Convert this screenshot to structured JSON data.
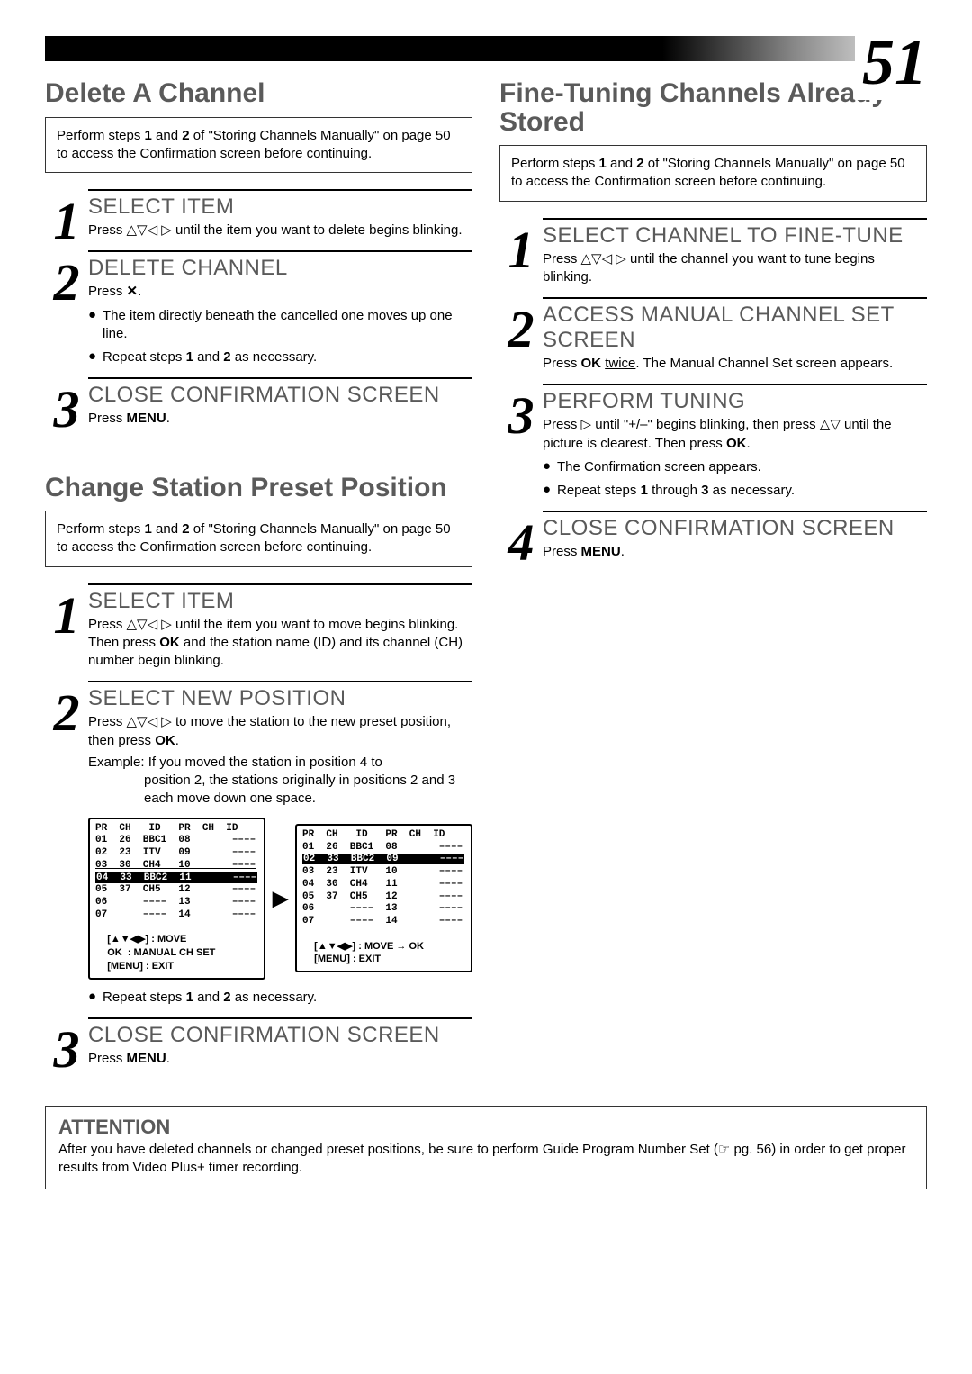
{
  "page_number": "51",
  "left": {
    "delete": {
      "title": "Delete A Channel",
      "intro": "Perform steps <b>1</b> and <b>2</b> of \"Storing Channels Manually\" on page 50 to access the Confirmation screen before continuing.",
      "steps": [
        {
          "num": "1",
          "heading": "SELECT ITEM",
          "body": "Press <span class='sym'>△▽◁ ▷</span> until the item you want to delete begins blinking."
        },
        {
          "num": "2",
          "heading": "DELETE CHANNEL",
          "body": "Press <b>✕</b>.",
          "bullets": [
            "The item directly beneath the cancelled one moves up one line.",
            "Repeat steps <b>1</b> and <b>2</b> as necessary."
          ]
        },
        {
          "num": "3",
          "heading": "CLOSE CONFIRMATION SCREEN",
          "body": "Press <b>MENU</b>."
        }
      ]
    },
    "change": {
      "title": "Change Station Preset Position",
      "intro": "Perform steps <b>1</b> and <b>2</b> of \"Storing Channels Manually\" on page 50 to access the Confirmation screen before continuing.",
      "steps": [
        {
          "num": "1",
          "heading": "SELECT ITEM",
          "body": "Press <span class='sym'>△▽◁ ▷</span> until the item you want to move begins blinking. Then press <b>OK</b> and the station name (ID) and its channel (CH) number begin blinking."
        },
        {
          "num": "2",
          "heading": "SELECT NEW POSITION",
          "body": "Press <span class='sym'>△▽◁ ▷</span> to move the station to the new preset position, then press <b>OK</b>.",
          "example_lead": "Example: If you moved the station in position 4 to",
          "example_rest": "position 2, the stations originally in positions 2 and 3 each move down one space.",
          "repeat_bullet": "Repeat steps <b>1</b> and <b>2</b> as necessary."
        },
        {
          "num": "3",
          "heading": "CLOSE CONFIRMATION SCREEN",
          "body": "Press <b>MENU</b>."
        }
      ]
    }
  },
  "right": {
    "finetune": {
      "title": "Fine-Tuning Channels Already Stored",
      "intro": "Perform steps <b>1</b> and <b>2</b> of \"Storing Channels Manually\" on page 50 to access the Confirmation screen before continuing.",
      "steps": [
        {
          "num": "1",
          "heading": "SELECT CHANNEL TO FINE-TUNE",
          "body": "Press <span class='sym'>△▽◁ ▷</span> until the channel you want to tune begins blinking."
        },
        {
          "num": "2",
          "heading": "ACCESS MANUAL CHANNEL SET SCREEN",
          "body": "Press <b>OK</b> <u>twice</u>. The Manual Channel Set screen appears."
        },
        {
          "num": "3",
          "heading": "PERFORM TUNING",
          "body": "Press <span class='sym'>▷</span> until \"+/–\" begins blinking, then press <span class='sym'>△▽</span> until the picture is clearest. Then press <b>OK</b>.",
          "bullets": [
            "The Confirmation screen appears.",
            "Repeat steps <b>1</b> through <b>3</b> as necessary."
          ]
        },
        {
          "num": "4",
          "heading": "CLOSE CONFIRMATION SCREEN",
          "body": "Press <b>MENU</b>."
        }
      ]
    }
  },
  "tv_before": {
    "header": "PR  CH   ID   PR  CH  ID",
    "rows": [
      "01  26  BBC1  08       ––––",
      "02  23  ITV   09       ––––",
      "03  30  CH4   10       ––––",
      "04  33  BBC2  11       ––––",
      "05  37  CH5   12       ––––",
      "06      ––––  13       ––––",
      "07      ––––  14       ––––"
    ],
    "footer1": "[▲▼◀▶] : MOVE",
    "footer2": "OK  : MANUAL CH SET",
    "footer3": "[MENU] : EXIT"
  },
  "tv_after": {
    "header": "PR  CH   ID   PR  CH  ID",
    "rows": [
      "01  26  BBC1  08       ––––",
      "02  33  BBC2  09       ––––",
      "03  23  ITV   10       ––––",
      "04  30  CH4   11       ––––",
      "05  37  CH5   12       ––––",
      "06      ––––  13       ––––",
      "07      ––––  14       ––––"
    ],
    "footer1": "[▲▼◀▶] : MOVE → OK",
    "footer2": "[MENU] : EXIT"
  },
  "attention": {
    "title": "ATTENTION",
    "body": "After you have deleted channels or changed preset positions, be sure to perform Guide Program Number Set (<span class='pgref'>☞</span> pg. 56) in order to get proper results from Video Plus+ timer recording."
  },
  "colors": {
    "heading_gray": "#5a5a5a",
    "text_black": "#000000",
    "background": "#ffffff"
  }
}
